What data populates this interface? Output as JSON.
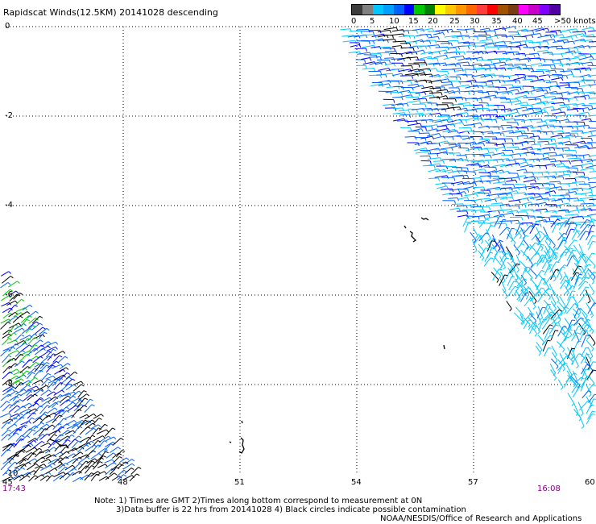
{
  "title": "Rapidscat Winds(12.5KM) 20141028 descending",
  "colorbar": {
    "colors": [
      "#3c3c3c",
      "#808080",
      "#00c8ff",
      "#00a0ff",
      "#0060ff",
      "#0000ff",
      "#00c800",
      "#008000",
      "#ffff00",
      "#ffc800",
      "#ff9600",
      "#ff6400",
      "#ff3c3c",
      "#ff0000",
      "#a05000",
      "#783c14",
      "#ff00ff",
      "#c800c8",
      "#8000ff",
      "#5000a0"
    ],
    "labels": [
      "0",
      "5",
      "10",
      "15",
      "20",
      "25",
      "30",
      "35",
      "40",
      "45",
      ">50 knots"
    ]
  },
  "lat_labels": [
    "0",
    "-2",
    "-4",
    "-6",
    "-8",
    "-10"
  ],
  "lon_labels": [
    "45",
    "48",
    "51",
    "54",
    "57",
    "60"
  ],
  "time_left": "17:43",
  "time_right": "16:08",
  "notes": {
    "line1": "Note:  1) Times are GMT  2)Times along bottom correspond to measurement at 0N",
    "line2": "3)Data buffer is 22 hrs from 20141028  4) Black circles indicate possible contamination",
    "line3": "NOAA/NESDIS/Office of Research and Applications"
  },
  "map": {
    "lon_range": [
      45,
      60
    ],
    "lat_range": [
      -10,
      0
    ],
    "grid": true
  },
  "wind_colors": {
    "calm": "#000000",
    "light": "#00c8ff",
    "moderate": "#0060ff",
    "strong": "#0000ff",
    "fresh": "#00c800"
  }
}
